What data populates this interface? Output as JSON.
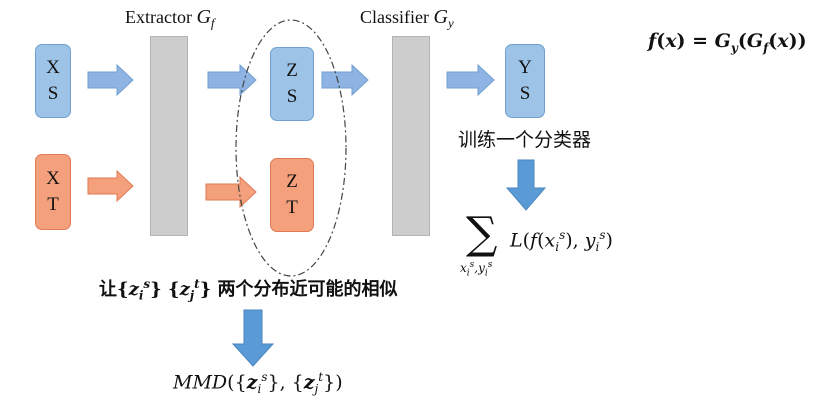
{
  "extractor": {
    "label": "Extractor",
    "symbol": "G",
    "sub": "f"
  },
  "classifier": {
    "label": "Classifier",
    "symbol": "G",
    "sub": "y"
  },
  "formula": "f(x) = G_y(G_f(x))",
  "inputs": {
    "source": {
      "top": "X",
      "bottom": "S"
    },
    "target": {
      "top": "X",
      "bottom": "T"
    }
  },
  "features": {
    "source": {
      "top": "Z",
      "bottom": "S"
    },
    "target": {
      "top": "Z",
      "bottom": "T"
    }
  },
  "output": {
    "top": "Y",
    "bottom": "S"
  },
  "train_text": "训练一个分类器",
  "loss": {
    "sum_symbol": "∑",
    "sum_sub": "x_i^s, y_i^s",
    "term": "L(f(x_i^s), y_i^s)"
  },
  "similarity": {
    "pre": "让",
    "sets": "{z_i^s} {z_j^t}",
    "post": "两个分布近可能的相似"
  },
  "mmd": "MMD({z_i^s}, {z_j^t})",
  "colors": {
    "blue_fill": "#9dc3e6",
    "orange_fill": "#f4a07c",
    "arrow_blue": "#8fb4e3",
    "arrow_orange": "#f4a07c",
    "down_arrow": "#5b9bd5",
    "bar": "#cdcdcd"
  }
}
